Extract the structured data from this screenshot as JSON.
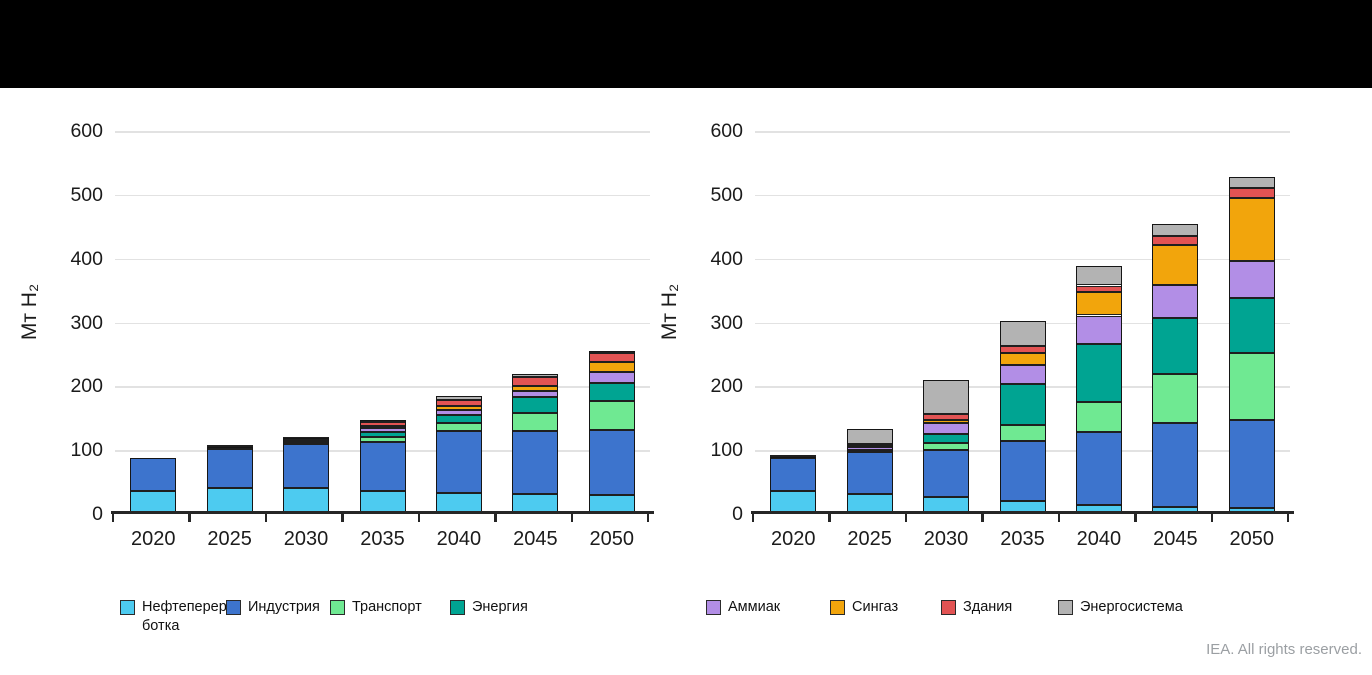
{
  "page": {
    "credit": "IEA. All rights reserved."
  },
  "colors": {
    "refining": "#4dcbf0",
    "industry": "#3d74cd",
    "transport": "#6fe992",
    "energy": "#00a492",
    "ammonia": "#b28ee6",
    "syngas": "#f2a50c",
    "buildings": "#e25353",
    "grid": "#b3b3b3",
    "bar_border": "#1f1f1f",
    "gridline": "#e2e2e2",
    "axis": "#262626",
    "credit_text": "#9b9fa3",
    "topbar": "#000000"
  },
  "legend": [
    {
      "key": "refining",
      "label": "Нефтепереработка",
      "label_lines": "Нефтеперера\nботка"
    },
    {
      "key": "industry",
      "label": "Индустрия",
      "label_lines": "Индустрия"
    },
    {
      "key": "transport",
      "label": "Транспорт",
      "label_lines": "Транспорт"
    },
    {
      "key": "energy",
      "label": "Энергия",
      "label_lines": "Энергия"
    },
    {
      "key": "ammonia",
      "label": "Аммиак",
      "label_lines": "Аммиак"
    },
    {
      "key": "syngas",
      "label": "Сингаз",
      "label_lines": "Сингаз"
    },
    {
      "key": "buildings",
      "label": "Здания",
      "label_lines": "Здания"
    },
    {
      "key": "grid",
      "label": "Энергосистема",
      "label_lines": "Энергосистема"
    }
  ],
  "chart_data": [
    {
      "type": "bar",
      "stacked": true,
      "name": "hydrogen-demand-left-scenario",
      "ylabel": "Мт H₂",
      "xlabel": "",
      "ylim": [
        0,
        600
      ],
      "y_ticks": [
        0,
        100,
        200,
        300,
        400,
        500,
        600
      ],
      "grid": true,
      "legend_position": "bottom-shared",
      "categories": [
        "2020",
        "2025",
        "2030",
        "2035",
        "2040",
        "2045",
        "2050"
      ],
      "series": [
        {
          "name": "Нефтепереработка",
          "key": "refining",
          "values": [
            36,
            41,
            40,
            36,
            33,
            31,
            30
          ]
        },
        {
          "name": "Индустрия",
          "key": "industry",
          "values": [
            52,
            61,
            70,
            77,
            97,
            99,
            102
          ]
        },
        {
          "name": "Транспорт",
          "key": "transport",
          "values": [
            0,
            1,
            3,
            8,
            13,
            29,
            45
          ]
        },
        {
          "name": "Энергия",
          "key": "energy",
          "values": [
            0,
            0.5,
            1.5,
            8,
            12,
            25,
            29
          ]
        },
        {
          "name": "Аммиак",
          "key": "ammonia",
          "values": [
            0,
            0.5,
            1,
            5,
            8,
            9,
            17
          ]
        },
        {
          "name": "Сингаз",
          "key": "syngas",
          "values": [
            0,
            0,
            0.5,
            4,
            6,
            8,
            15
          ]
        },
        {
          "name": "Здания",
          "key": "buildings",
          "values": [
            0,
            0.5,
            1,
            6,
            10,
            14,
            14
          ]
        },
        {
          "name": "Энергосистема",
          "key": "grid",
          "values": [
            0,
            1,
            2,
            4,
            6,
            5,
            3
          ]
        }
      ],
      "totals": [
        88,
        105,
        119,
        148,
        185,
        220,
        255
      ]
    },
    {
      "type": "bar",
      "stacked": true,
      "name": "hydrogen-demand-right-scenario",
      "ylabel": "Мт H₂",
      "xlabel": "",
      "ylim": [
        0,
        600
      ],
      "y_ticks": [
        0,
        100,
        200,
        300,
        400,
        500,
        600
      ],
      "grid": true,
      "legend_position": "bottom-shared",
      "categories": [
        "2020",
        "2025",
        "2030",
        "2035",
        "2040",
        "2045",
        "2050"
      ],
      "series": [
        {
          "name": "Нефтепереработка",
          "key": "refining",
          "values": [
            36,
            31,
            26,
            20,
            14,
            11,
            9
          ]
        },
        {
          "name": "Индустрия",
          "key": "industry",
          "values": [
            52,
            66,
            74,
            95,
            115,
            131,
            138
          ]
        },
        {
          "name": "Транспорт",
          "key": "transport",
          "values": [
            0,
            1,
            11,
            24,
            47,
            77,
            106
          ]
        },
        {
          "name": "Энергия",
          "key": "energy",
          "values": [
            0,
            2,
            15,
            65,
            90,
            88,
            85
          ]
        },
        {
          "name": "Аммиак",
          "key": "ammonia",
          "values": [
            0,
            5,
            16,
            29,
            45,
            52,
            59
          ]
        },
        {
          "name": "Сингаз",
          "key": "syngas",
          "values": [
            0,
            1,
            5,
            20,
            37,
            62,
            98
          ]
        },
        {
          "name": "Здания",
          "key": "buildings",
          "values": [
            1,
            3,
            10,
            10,
            10,
            15,
            16
          ]
        },
        {
          "name": "Энергосистема",
          "key": "grid",
          "values": [
            1,
            24,
            53,
            40,
            31,
            19,
            17
          ]
        }
      ],
      "totals": [
        90,
        133,
        210,
        303,
        389,
        455,
        528
      ]
    }
  ]
}
